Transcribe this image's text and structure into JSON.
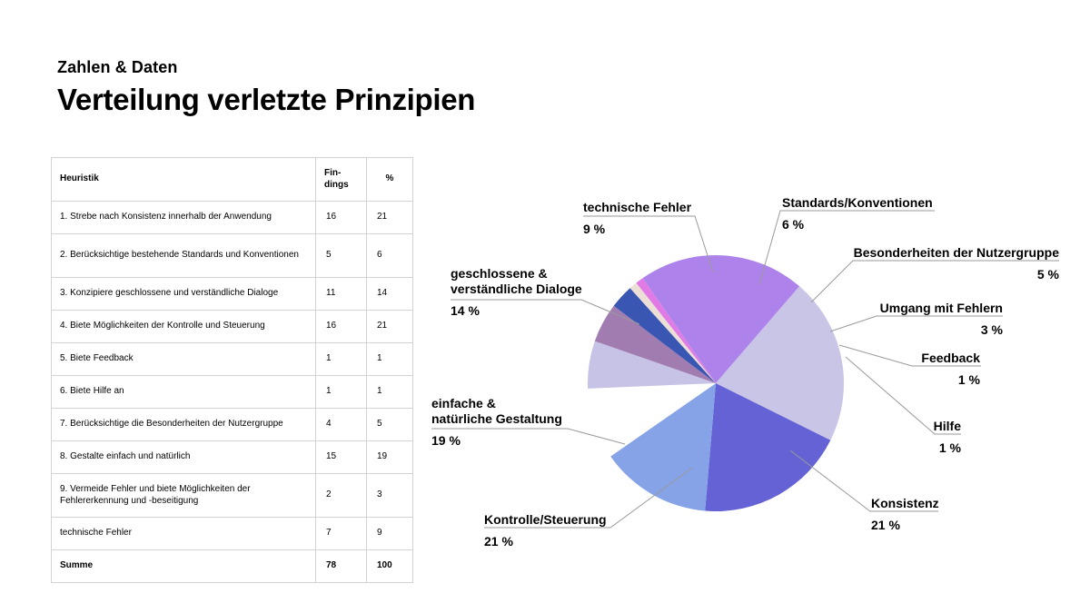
{
  "header": {
    "supertitle": "Zahlen & Daten",
    "title": "Verteilung verletzte Prinzipien"
  },
  "table": {
    "headers": [
      "Heuristik",
      "Fin-\ndings",
      "%"
    ],
    "rows": [
      [
        "1. Strebe nach Konsistenz innerhalb der Anwendung",
        "16",
        "21"
      ],
      [
        "2. Berücksichtige bestehende Standards und Konventionen",
        "5",
        "6"
      ],
      [
        "3. Konzipiere geschlossene und verständliche Dialoge",
        "11",
        "14"
      ],
      [
        "4. Biete Möglichkeiten der Kontrolle und Steuerung",
        "16",
        "21"
      ],
      [
        "5. Biete Feedback",
        "1",
        "1"
      ],
      [
        "6. Biete Hilfe an",
        "1",
        "1"
      ],
      [
        "7. Berücksichtige die Besonderheiten der Nutzergruppe",
        "4",
        "5"
      ],
      [
        "8. Gestalte einfach und natürlich",
        "15",
        "19"
      ],
      [
        "9. Vermeide Fehler und biete Möglichkeiten der Fehlererkennung und -beseitigung",
        "2",
        "3"
      ],
      [
        "technische Fehler",
        "7",
        "9"
      ]
    ],
    "sum_row": [
      "Summe",
      "78",
      "100"
    ]
  },
  "chart_data": {
    "type": "pie",
    "title": "",
    "unit": "%",
    "slices": [
      {
        "label": "Konsistenz",
        "value": 21,
        "value_label": "21 %",
        "color": "#ad83eb"
      },
      {
        "label": "Kontrolle/Steuerung",
        "value": 21,
        "value_label": "21 %",
        "color": "#c9c5e6"
      },
      {
        "label": "einfache &\nnatürliche Gestaltung",
        "value": 19,
        "value_label": "19 %",
        "color": "#6462d4"
      },
      {
        "label": "geschlossene &\nverständliche Dialoge",
        "value": 14,
        "value_label": "14 %",
        "color": "#86a3e8"
      },
      {
        "label": "technische Fehler",
        "value": 9,
        "value_label": "9 %",
        "color": "#ffffff"
      },
      {
        "label": "Standards/Konventionen",
        "value": 6,
        "value_label": "6 %",
        "color": "#c7c3e6"
      },
      {
        "label": "Besonderheiten der Nutzergruppe",
        "value": 5,
        "value_label": "5 %",
        "color": "#a07cb0"
      },
      {
        "label": "Umgang mit Fehlern",
        "value": 3,
        "value_label": "3 %",
        "color": "#3a56b3"
      },
      {
        "label": "Feedback",
        "value": 1,
        "value_label": "1 %",
        "color": "#ecdfd6"
      },
      {
        "label": "Hilfe",
        "value": 1,
        "value_label": "1 %",
        "color": "#e07be6"
      }
    ]
  }
}
